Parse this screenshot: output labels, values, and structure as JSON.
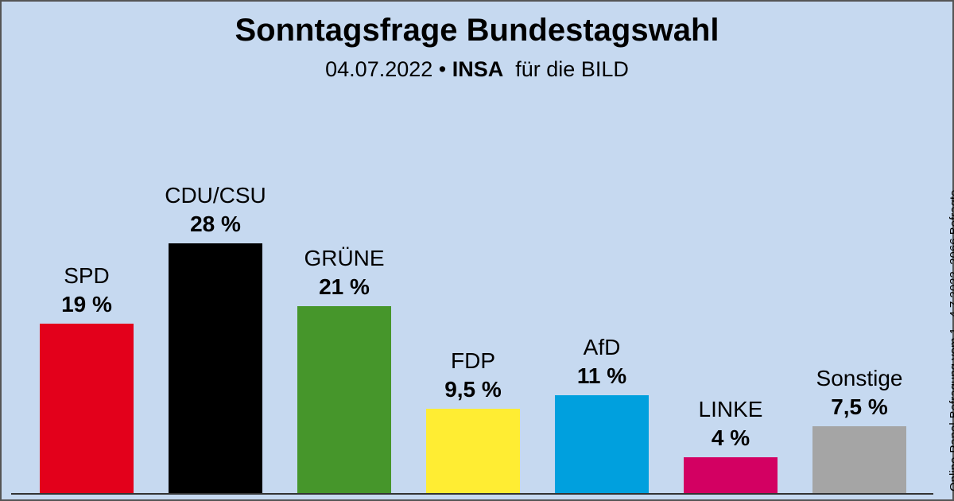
{
  "title": "Sonntagsfrage Bundestagswahl",
  "subtitle": {
    "date": "04.07.2022",
    "sep": " • ",
    "institute": "INSA",
    "client": "für die BILD"
  },
  "side_note": "Online-Panel-Befragung vom 1.–4.7.2022, 2066 Befragte",
  "chart_data": {
    "type": "bar",
    "title": "Sonntagsfrage Bundestagswahl",
    "categories": [
      "SPD",
      "CDU/CSU",
      "GRÜNE",
      "FDP",
      "AfD",
      "LINKE",
      "Sonstige"
    ],
    "values": [
      19,
      28,
      21,
      9.5,
      11,
      4,
      7.5
    ],
    "value_labels": [
      "19 %",
      "28 %",
      "21 %",
      "9,5 %",
      "11 %",
      "4 %",
      "7,5 %"
    ],
    "colors": [
      "#e3001b",
      "#000000",
      "#46962b",
      "#ffed33",
      "#00a0de",
      "#d30062",
      "#a5a5a5"
    ],
    "grid": false,
    "legend": "none"
  }
}
